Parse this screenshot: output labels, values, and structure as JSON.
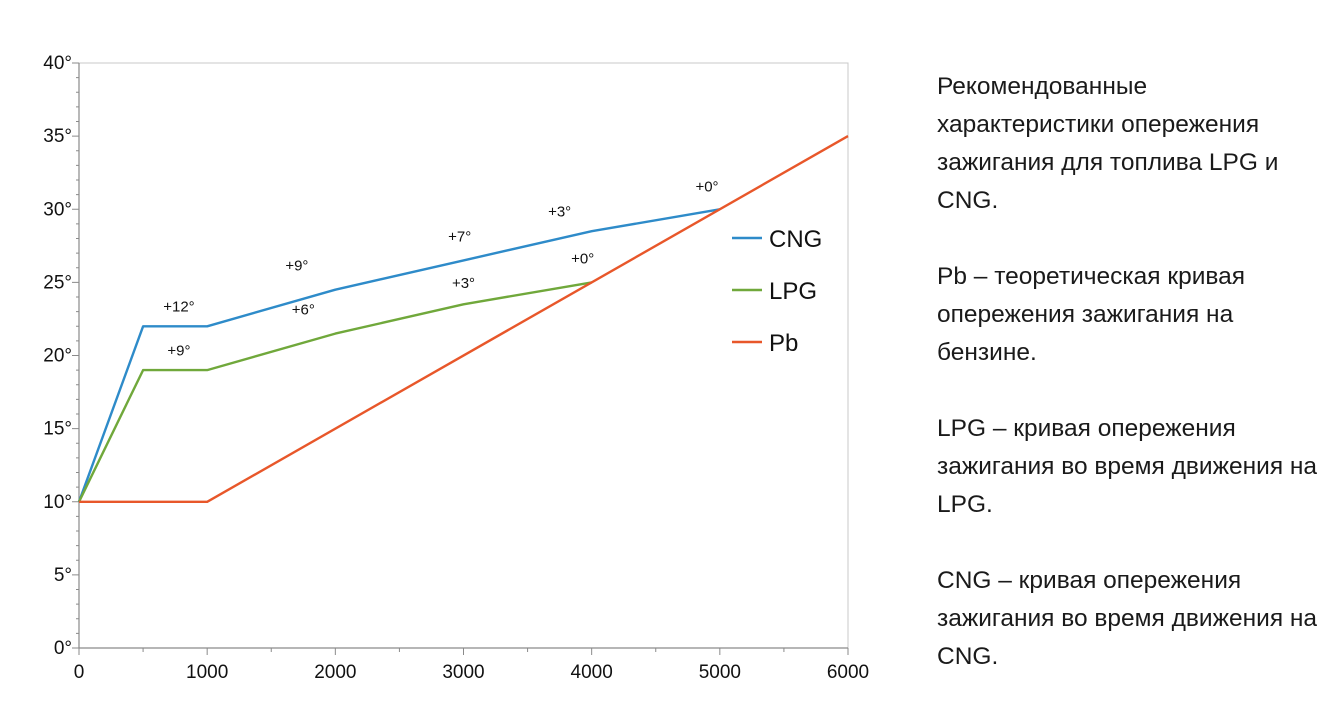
{
  "chart_data": {
    "type": "line",
    "xlim": [
      0,
      6000
    ],
    "ylim": [
      0,
      40
    ],
    "x_ticks": [
      "0",
      "1000",
      "2000",
      "3000",
      "4000",
      "5000",
      "6000"
    ],
    "y_ticks": [
      "0°",
      "5°",
      "10°",
      "15°",
      "20°",
      "25°",
      "30°",
      "35°",
      "40°"
    ],
    "grid": false,
    "legend_position": "right",
    "series": [
      {
        "name": "CNG",
        "color": "#2e8bc9",
        "points": [
          [
            0,
            10
          ],
          [
            500,
            22
          ],
          [
            1000,
            22
          ],
          [
            2000,
            24.5
          ],
          [
            3000,
            26.5
          ],
          [
            4000,
            28.5
          ],
          [
            5000,
            30
          ]
        ]
      },
      {
        "name": "LPG",
        "color": "#70a83b",
        "points": [
          [
            0,
            10
          ],
          [
            500,
            19
          ],
          [
            1000,
            19
          ],
          [
            2000,
            21.5
          ],
          [
            3000,
            23.5
          ],
          [
            4000,
            25
          ]
        ]
      },
      {
        "name": "Pb",
        "color": "#e8572a",
        "points": [
          [
            0,
            10
          ],
          [
            1000,
            10
          ],
          [
            6000,
            35
          ]
        ]
      }
    ],
    "annotations": [
      {
        "text": "+12°",
        "x": 780,
        "y": 23
      },
      {
        "text": "+9°",
        "x": 1700,
        "y": 25.8
      },
      {
        "text": "+7°",
        "x": 2970,
        "y": 27.8
      },
      {
        "text": "+3°",
        "x": 3750,
        "y": 29.5
      },
      {
        "text": "+0°",
        "x": 4900,
        "y": 31.2
      },
      {
        "text": "+9°",
        "x": 780,
        "y": 20
      },
      {
        "text": "+6°",
        "x": 1750,
        "y": 22.8
      },
      {
        "text": "+3°",
        "x": 3000,
        "y": 24.6
      },
      {
        "text": "+0°",
        "x": 3930,
        "y": 26.3
      }
    ]
  },
  "description": [
    "Рекомендованные характеристики опережения зажигания для топлива LPG и CNG.",
    "Pb – теоретическая кривая опережения зажигания на бензине.",
    "LPG – кривая опережения зажигания во время движения на LPG.",
    "CNG – кривая опережения зажигания во время движения на CNG."
  ]
}
